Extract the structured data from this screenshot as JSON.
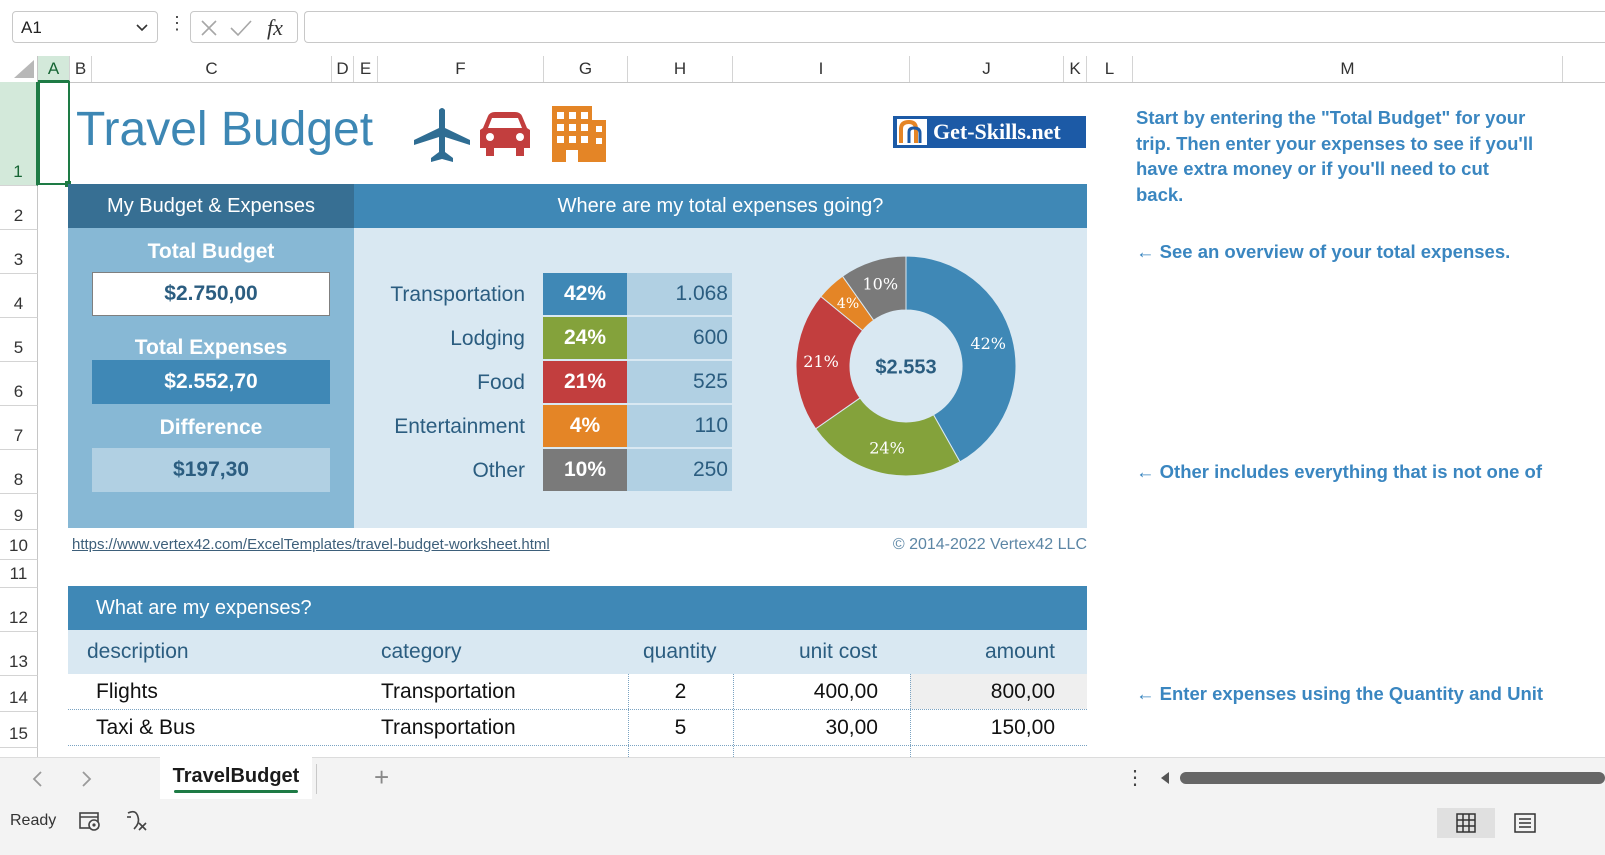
{
  "formula_bar": {
    "name_box": "A1",
    "fx_label": "fx",
    "formula": ""
  },
  "columns": [
    "A",
    "B",
    "C",
    "D",
    "E",
    "F",
    "G",
    "H",
    "I",
    "J",
    "K",
    "L",
    "M"
  ],
  "rows": [
    "1",
    "2",
    "3",
    "4",
    "5",
    "6",
    "7",
    "8",
    "9",
    "10",
    "11",
    "12",
    "13",
    "14",
    "15"
  ],
  "sheet": {
    "title": "Travel Budget",
    "logo_text": "Get-Skills.net",
    "left_header": "My Budget & Expenses",
    "right_header": "Where are my total expenses going?",
    "total_budget_label": "Total Budget",
    "total_budget_value": "$2.750,00",
    "total_expenses_label": "Total Expenses",
    "total_expenses_value": "$2.552,70",
    "difference_label": "Difference",
    "difference_value": "$197,30",
    "categories": [
      {
        "name": "Transportation",
        "pct": "42%",
        "value": "1.068",
        "color": "#3f88b6"
      },
      {
        "name": "Lodging",
        "pct": "24%",
        "value": "600",
        "color": "#84a23b"
      },
      {
        "name": "Food",
        "pct": "21%",
        "value": "525",
        "color": "#c23e3e"
      },
      {
        "name": "Entertainment",
        "pct": "4%",
        "value": "110",
        "color": "#e48526"
      },
      {
        "name": "Other",
        "pct": "10%",
        "value": "250",
        "color": "#7a7a7a"
      }
    ],
    "donut_center": "$2.553",
    "url": "https://www.vertex42.com/ExcelTemplates/travel-budget-worksheet.html",
    "copyright": "© 2014-2022 Vertex42 LLC",
    "expenses_header": "What are my expenses?",
    "table_headers": {
      "description": "description",
      "category": "category",
      "quantity": "quantity",
      "unit_cost": "unit cost",
      "amount": "amount"
    },
    "expenses": [
      {
        "description": "Flights",
        "category": "Transportation",
        "quantity": "2",
        "unit_cost": "400,00",
        "amount": "800,00"
      },
      {
        "description": "Taxi & Bus",
        "category": "Transportation",
        "quantity": "5",
        "unit_cost": "30,00",
        "amount": "150,00"
      }
    ]
  },
  "chart_data": {
    "type": "pie",
    "categories": [
      "Transportation",
      "Lodging",
      "Food",
      "Entertainment",
      "Other"
    ],
    "values": [
      1068,
      600,
      525,
      110,
      250
    ],
    "labels": [
      "42%",
      "24%",
      "21%",
      "4%",
      "10%"
    ],
    "colors": [
      "#3f88b6",
      "#84a23b",
      "#c23e3e",
      "#e48526",
      "#7a7a7a"
    ],
    "center_label": "$2.553"
  },
  "notes": {
    "n1": [
      "Start by entering the \"Total Budget\" for your",
      "trip. Then enter your expenses to see if you'll",
      "have extra money or if you'll need to cut",
      "back."
    ],
    "n2": "← See an overview of your total expenses.",
    "n3": "← Other includes everything that is not one of",
    "n4": "← Enter expenses using the Quantity and Unit"
  },
  "tabs": {
    "active": "TravelBudget",
    "add_label": "+"
  },
  "status": {
    "text": "Ready"
  }
}
